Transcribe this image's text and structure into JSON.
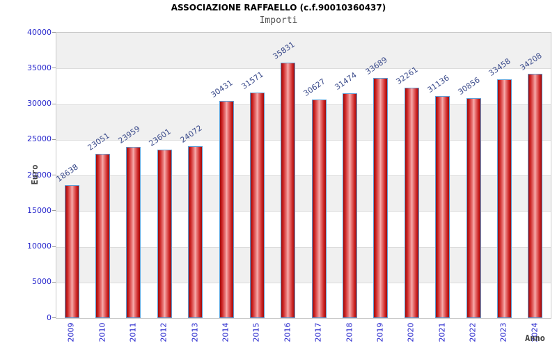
{
  "chart_data": {
    "type": "bar",
    "title": "ASSOCIAZIONE RAFFAELLO (c.f.90010360437)",
    "subtitle": "Importi",
    "xlabel": "Anno",
    "ylabel": "Euro",
    "categories": [
      "2009",
      "2010",
      "2011",
      "2012",
      "2013",
      "2014",
      "2015",
      "2016",
      "2017",
      "2018",
      "2019",
      "2020",
      "2021",
      "2022",
      "2023",
      "2024"
    ],
    "values": [
      18638,
      23051,
      23959,
      23601,
      24072,
      30431,
      31571,
      35831,
      30627,
      31474,
      33689,
      32261,
      31136,
      30856,
      33458,
      34208
    ],
    "ylim": [
      0,
      40000
    ],
    "ytick_step": 5000,
    "ytick_labels": [
      "0",
      "5000",
      "10000",
      "15000",
      "20000",
      "25000",
      "30000",
      "35000",
      "40000"
    ],
    "legend": "none",
    "grid": "alternating horizontal bands with light gridlines",
    "colors": {
      "title_text": "#000000",
      "subtitle_text": "#555555",
      "axis_tick_text": "#2424cc",
      "value_label_text": "#3c4c8c",
      "axis_title_text": "#404040",
      "bar_edge": "#9c0c0c",
      "bar_mid": "#f7b0b0",
      "bar_border": "#5f9fd6",
      "band": "#f0f0f0",
      "gridline": "#dcdcdc",
      "plot_border": "#c8c8c8"
    }
  }
}
